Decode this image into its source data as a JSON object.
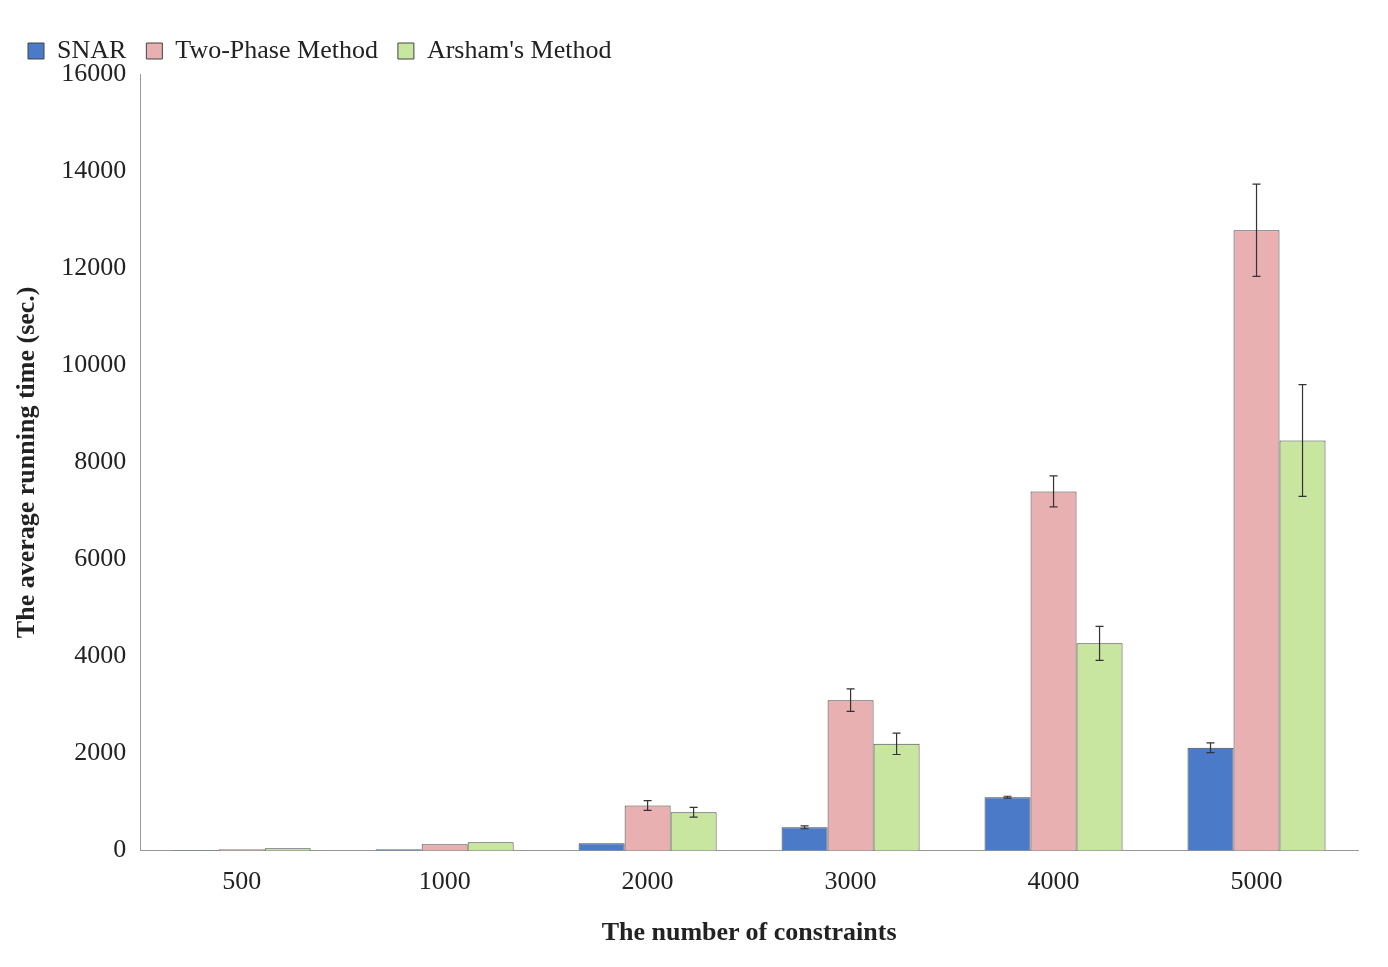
{
  "chart_data": {
    "type": "bar",
    "xlabel": "The number of constraints",
    "ylabel": "The average running time (sec.)",
    "categories": [
      "500",
      "1000",
      "2000",
      "3000",
      "4000",
      "5000"
    ],
    "series": [
      {
        "name": "SNAR",
        "color": "#4a7ac8",
        "values": [
          10,
          30,
          150,
          480,
          1100,
          2120
        ],
        "errors": [
          null,
          null,
          null,
          30,
          20,
          100
        ]
      },
      {
        "name": "Two-Phase Method",
        "color": "#e8b0b0",
        "values": [
          30,
          130,
          930,
          3100,
          7400,
          12780
        ],
        "errors": [
          null,
          null,
          100,
          230,
          320,
          950
        ]
      },
      {
        "name": "Arsham's Method",
        "color": "#c8e6a0",
        "values": [
          50,
          170,
          790,
          2200,
          4270,
          8450
        ],
        "errors": [
          null,
          null,
          100,
          220,
          350,
          1150
        ]
      }
    ],
    "ylim": [
      0,
      16000
    ],
    "yticks": [
      0,
      2000,
      4000,
      6000,
      8000,
      10000,
      12000,
      14000,
      16000
    ],
    "grid": false,
    "legend": "top left"
  }
}
